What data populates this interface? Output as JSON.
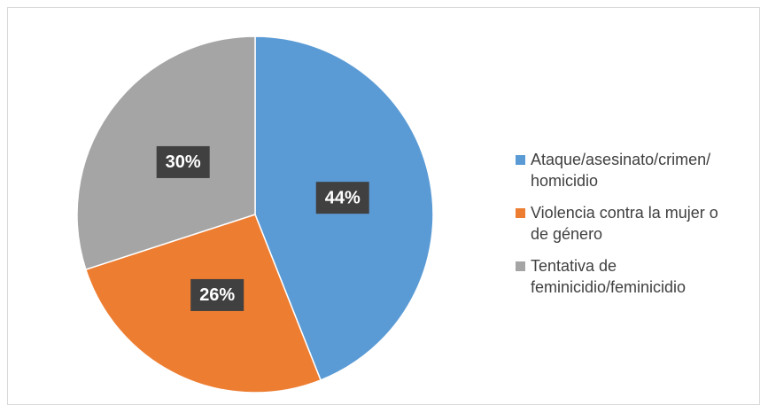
{
  "chart_data": {
    "type": "pie",
    "series": [
      {
        "name": "Ataque/asesinato/crimen/ homicidio",
        "color": "#5b9bd5",
        "values": [
          44
        ],
        "value_labels": [
          "44%"
        ]
      },
      {
        "name": "Violencia contra la mujer o de género",
        "color": "#ed7d31",
        "values": [
          26
        ],
        "value_labels": [
          "26%"
        ]
      },
      {
        "name": "Tentativa de feminicidio/feminicidio",
        "color": "#a5a5a5",
        "values": [
          30
        ],
        "value_labels": [
          "30%"
        ]
      }
    ],
    "legend": "right"
  }
}
